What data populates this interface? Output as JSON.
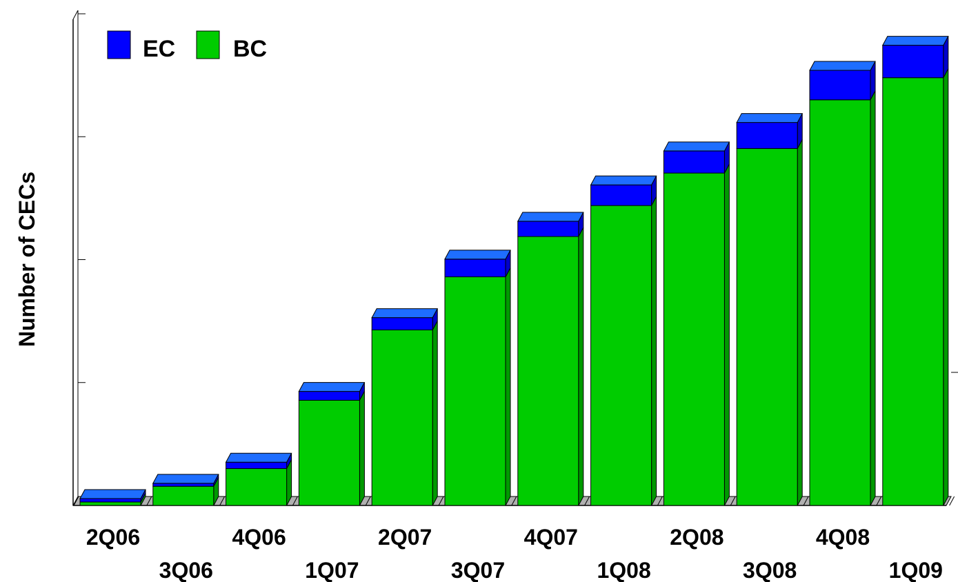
{
  "chart_data": {
    "type": "bar",
    "stacked": true,
    "three_d": true,
    "title": "",
    "xlabel": "",
    "ylabel": "Number of CECs",
    "ylim": [
      0,
      100
    ],
    "y_tick_labels_shown": false,
    "grid": false,
    "legend_position": "top-left",
    "categories": [
      "2Q06",
      "3Q06",
      "4Q06",
      "1Q07",
      "2Q07",
      "3Q07",
      "4Q07",
      "1Q08",
      "2Q08",
      "3Q08",
      "4Q08",
      "1Q09"
    ],
    "series": [
      {
        "name": "BC",
        "color": "#00cc00",
        "values": [
          0.7,
          3.9,
          7.5,
          21.4,
          35.7,
          46.5,
          54.7,
          61.0,
          67.6,
          72.6,
          82.5,
          87.0
        ]
      },
      {
        "name": "EC",
        "color": "#0000ff",
        "values": [
          0.7,
          0.6,
          1.3,
          1.8,
          2.5,
          3.6,
          3.1,
          4.2,
          4.5,
          5.3,
          6.0,
          6.6
        ]
      }
    ],
    "colors": {
      "bc_side": "#009900",
      "ec_top": "#1e6eff",
      "floor": "#b0b0b0",
      "axis": "#000000"
    }
  }
}
